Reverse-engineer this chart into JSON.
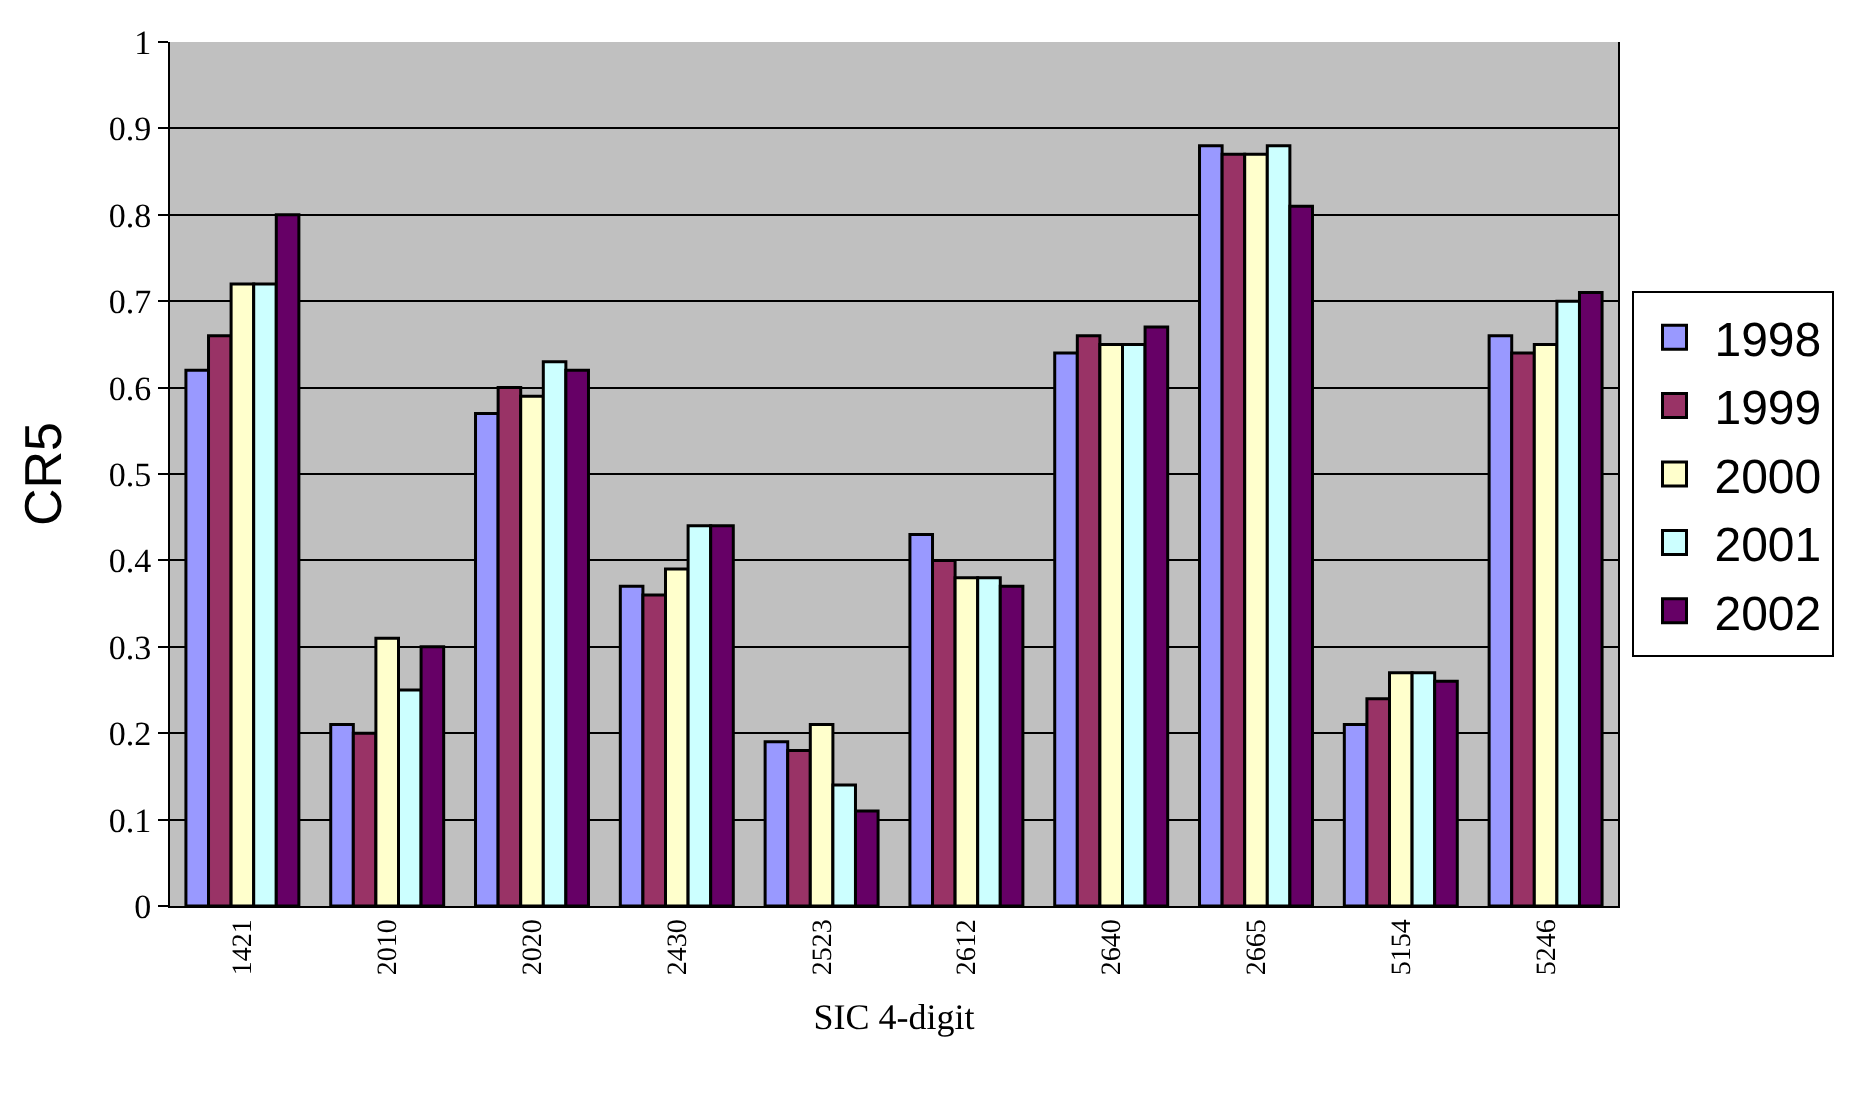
{
  "chart_data": {
    "type": "bar",
    "xlabel": "SIC 4-digit",
    "ylabel": "CR5",
    "categories": [
      "1421",
      "2010",
      "2020",
      "2430",
      "2523",
      "2612",
      "2640",
      "2665",
      "5154",
      "5246"
    ],
    "series": [
      {
        "name": "1998",
        "color": "#9999ff",
        "values": [
          0.62,
          0.21,
          0.57,
          0.37,
          0.19,
          0.43,
          0.64,
          0.88,
          0.21,
          0.66
        ]
      },
      {
        "name": "1999",
        "color": "#993366",
        "values": [
          0.66,
          0.2,
          0.6,
          0.36,
          0.18,
          0.4,
          0.66,
          0.87,
          0.24,
          0.64
        ]
      },
      {
        "name": "2000",
        "color": "#ffffcc",
        "values": [
          0.72,
          0.31,
          0.59,
          0.39,
          0.21,
          0.38,
          0.65,
          0.87,
          0.27,
          0.65
        ]
      },
      {
        "name": "2001",
        "color": "#ccffff",
        "values": [
          0.72,
          0.25,
          0.63,
          0.44,
          0.14,
          0.38,
          0.65,
          0.88,
          0.27,
          0.7
        ]
      },
      {
        "name": "2002",
        "color": "#660066",
        "values": [
          0.8,
          0.3,
          0.62,
          0.44,
          0.11,
          0.37,
          0.67,
          0.81,
          0.26,
          0.71
        ]
      }
    ],
    "ylim": [
      0,
      1
    ],
    "yticks": [
      0,
      0.1,
      0.2,
      0.3,
      0.4,
      0.5,
      0.6,
      0.7,
      0.8,
      0.9,
      1
    ],
    "grid": "y",
    "legend": "right"
  }
}
